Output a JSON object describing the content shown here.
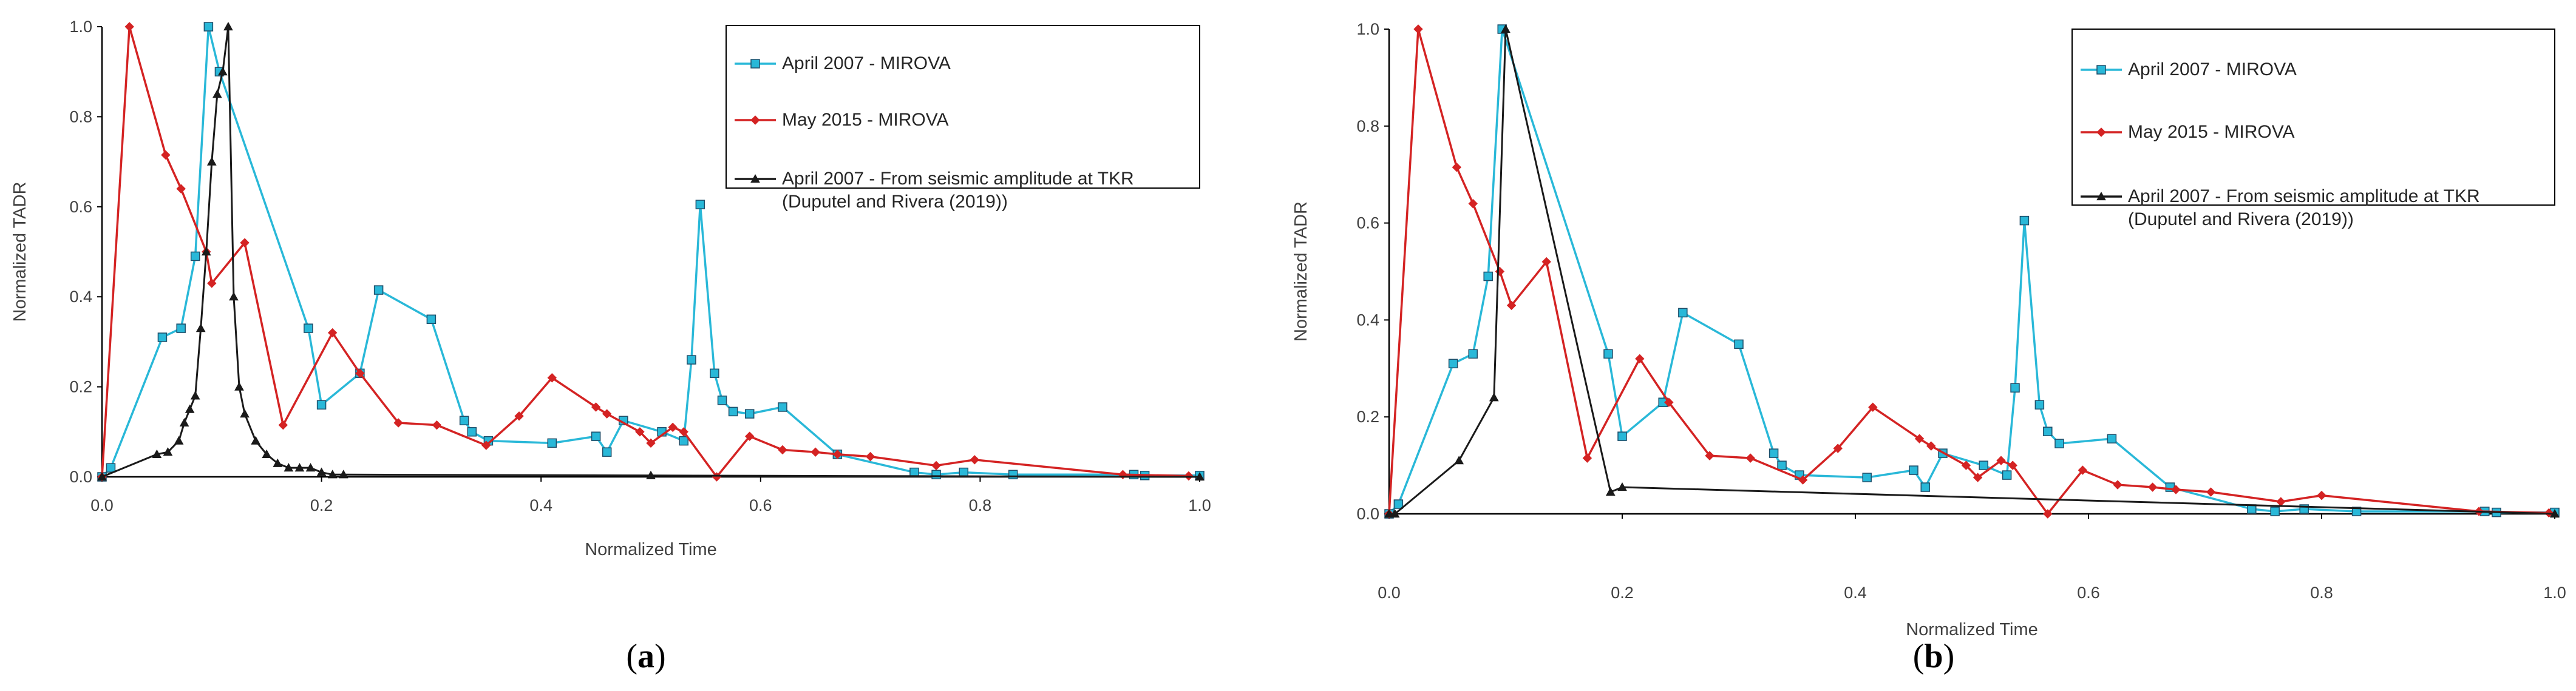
{
  "panels": [
    {
      "label": "(a)",
      "letter": "a"
    },
    {
      "label": "(b)",
      "letter": "b"
    }
  ],
  "chart_data": [
    {
      "type": "line",
      "xlabel": "Normalized Time",
      "ylabel": "Normalized TADR",
      "xlim": [
        0,
        1
      ],
      "ylim": [
        0,
        1
      ],
      "xticks": [
        "0.0",
        "0.2",
        "0.4",
        "0.6",
        "0.8",
        "1.0"
      ],
      "yticks": [
        "0.0",
        "0.2",
        "0.4",
        "0.6",
        "0.8",
        "1.0"
      ],
      "grid": false,
      "legend": "top-right",
      "series": [
        {
          "name": "April 2007 - MIROVA",
          "color": "#29B8D8",
          "marker": "square",
          "x": [
            0,
            0.008,
            0.055,
            0.072,
            0.085,
            0.097,
            0.107,
            0.188,
            0.2,
            0.235,
            0.252,
            0.3,
            0.33,
            0.337,
            0.352,
            0.41,
            0.45,
            0.46,
            0.475,
            0.51,
            0.53,
            0.537,
            0.545,
            0.558,
            0.565,
            0.575,
            0.59,
            0.62,
            0.67,
            0.74,
            0.76,
            0.785,
            0.83,
            0.94,
            0.95,
            1.0
          ],
          "y": [
            0,
            0.02,
            0.31,
            0.33,
            0.49,
            1.0,
            0.9,
            0.33,
            0.16,
            0.23,
            0.415,
            0.35,
            0.125,
            0.1,
            0.08,
            0.075,
            0.09,
            0.055,
            0.125,
            0.1,
            0.08,
            0.26,
            0.605,
            0.23,
            0.17,
            0.145,
            0.14,
            0.155,
            0.05,
            0.01,
            0.005,
            0.01,
            0.005,
            0.005,
            0.003,
            0.003
          ]
        },
        {
          "name": "May 2015 - MIROVA",
          "color": "#D42323",
          "marker": "diamond",
          "x": [
            0,
            0.025,
            0.058,
            0.072,
            0.095,
            0.1,
            0.13,
            0.165,
            0.21,
            0.235,
            0.27,
            0.305,
            0.35,
            0.38,
            0.41,
            0.45,
            0.46,
            0.49,
            0.5,
            0.52,
            0.53,
            0.56,
            0.59,
            0.62,
            0.65,
            0.67,
            0.7,
            0.76,
            0.795,
            0.93,
            0.99
          ],
          "y": [
            0,
            1.0,
            0.715,
            0.64,
            0.5,
            0.43,
            0.52,
            0.115,
            0.32,
            0.23,
            0.12,
            0.115,
            0.07,
            0.135,
            0.22,
            0.155,
            0.14,
            0.1,
            0.075,
            0.11,
            0.1,
            0.0,
            0.09,
            0.06,
            0.055,
            0.05,
            0.045,
            0.025,
            0.038,
            0.005,
            0.002
          ]
        },
        {
          "name": "April 2007 - From seismic amplitude at TKR",
          "name_line2": "(Duputel and Rivera (2019))",
          "color": "#1A1A1A",
          "marker": "triangle",
          "x": [
            0,
            0.05,
            0.06,
            0.07,
            0.075,
            0.08,
            0.085,
            0.09,
            0.095,
            0.1,
            0.105,
            0.11,
            0.115,
            0.12,
            0.125,
            0.13,
            0.14,
            0.15,
            0.16,
            0.17,
            0.18,
            0.19,
            0.2,
            0.21,
            0.22,
            0.5,
            1.0
          ],
          "y": [
            0,
            0.05,
            0.055,
            0.08,
            0.12,
            0.15,
            0.18,
            0.33,
            0.5,
            0.7,
            0.85,
            0.9,
            1.0,
            0.4,
            0.2,
            0.14,
            0.08,
            0.05,
            0.03,
            0.02,
            0.02,
            0.02,
            0.01,
            0.005,
            0.005,
            0.003,
            0.0
          ]
        }
      ]
    },
    {
      "type": "line",
      "xlabel": "Normalized Time",
      "ylabel": "Normalized TADR",
      "xlim": [
        0,
        1
      ],
      "ylim": [
        0,
        1
      ],
      "xticks": [
        "0.0",
        "0.2",
        "0.4",
        "0.6",
        "0.8",
        "1.0"
      ],
      "yticks": [
        "0.0",
        "0.2",
        "0.4",
        "0.6",
        "0.8",
        "1.0"
      ],
      "grid": false,
      "legend": "top-right",
      "series": [
        {
          "name": "April 2007 - MIROVA",
          "color": "#29B8D8",
          "marker": "square",
          "x": [
            0,
            0.008,
            0.055,
            0.072,
            0.085,
            0.097,
            0.188,
            0.2,
            0.235,
            0.252,
            0.3,
            0.33,
            0.337,
            0.352,
            0.41,
            0.45,
            0.46,
            0.475,
            0.51,
            0.53,
            0.537,
            0.545,
            0.558,
            0.565,
            0.575,
            0.62,
            0.67,
            0.74,
            0.76,
            0.785,
            0.83,
            0.94,
            0.95,
            1.0
          ],
          "y": [
            0,
            0.02,
            0.31,
            0.33,
            0.49,
            1.0,
            0.33,
            0.16,
            0.23,
            0.415,
            0.35,
            0.125,
            0.1,
            0.08,
            0.075,
            0.09,
            0.055,
            0.125,
            0.1,
            0.08,
            0.26,
            0.605,
            0.225,
            0.17,
            0.145,
            0.155,
            0.055,
            0.01,
            0.005,
            0.01,
            0.005,
            0.005,
            0.003,
            0.003
          ]
        },
        {
          "name": "May 2015 - MIROVA",
          "color": "#D42323",
          "marker": "diamond",
          "x": [
            0,
            0.025,
            0.058,
            0.072,
            0.095,
            0.105,
            0.135,
            0.17,
            0.215,
            0.24,
            0.275,
            0.31,
            0.355,
            0.385,
            0.415,
            0.455,
            0.465,
            0.495,
            0.505,
            0.525,
            0.535,
            0.565,
            0.595,
            0.625,
            0.655,
            0.675,
            0.705,
            0.765,
            0.8,
            0.935,
            0.995
          ],
          "y": [
            0,
            1.0,
            0.715,
            0.64,
            0.5,
            0.43,
            0.52,
            0.115,
            0.32,
            0.23,
            0.12,
            0.115,
            0.07,
            0.135,
            0.22,
            0.155,
            0.14,
            0.1,
            0.075,
            0.11,
            0.1,
            0.0,
            0.09,
            0.06,
            0.055,
            0.05,
            0.045,
            0.025,
            0.038,
            0.005,
            0.002
          ]
        },
        {
          "name": "April 2007 - From seismic amplitude at TKR",
          "name_line2": "(Duputel and Rivera (2019))",
          "color": "#1A1A1A",
          "marker": "triangle",
          "x": [
            0,
            0.005,
            0.06,
            0.09,
            0.1,
            0.19,
            0.2,
            1.0
          ],
          "y": [
            0,
            0.0,
            0.11,
            0.24,
            1.0,
            0.045,
            0.055,
            0.0
          ]
        }
      ]
    }
  ]
}
